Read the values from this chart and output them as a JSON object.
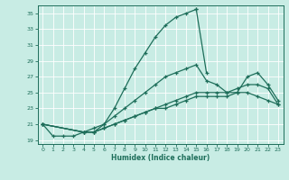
{
  "title": "",
  "xlabel": "Humidex (Indice chaleur)",
  "bg_color": "#c8ece4",
  "line_color": "#1e6e5a",
  "grid_color": "#b0d8d0",
  "xlim": [
    -0.5,
    23.5
  ],
  "ylim": [
    18.5,
    36.0
  ],
  "xticks": [
    0,
    1,
    2,
    3,
    4,
    5,
    6,
    7,
    8,
    9,
    10,
    11,
    12,
    13,
    14,
    15,
    16,
    17,
    18,
    19,
    20,
    21,
    22,
    23
  ],
  "yticks": [
    19,
    21,
    23,
    25,
    27,
    29,
    31,
    33,
    35
  ],
  "line1_x": [
    0,
    1,
    2,
    3,
    4,
    5,
    6,
    7,
    8,
    9,
    10,
    11,
    12,
    13,
    14,
    15,
    15,
    16
  ],
  "line1_y": [
    21,
    19.5,
    19.5,
    19.5,
    20,
    20,
    21,
    23,
    25.5,
    28,
    30,
    32,
    33.5,
    34.5,
    35,
    35.5,
    35.5,
    27.5
  ],
  "line2_x": [
    0,
    4,
    5,
    6,
    7,
    8,
    9,
    10,
    11,
    12,
    13,
    14,
    15,
    16,
    17,
    18,
    19,
    20,
    21,
    22,
    23
  ],
  "line2_y": [
    21,
    20,
    20.5,
    21,
    22,
    23,
    24,
    25,
    26,
    27,
    27.5,
    28,
    28.5,
    26.5,
    26,
    25,
    25,
    27,
    27.5,
    26,
    24
  ],
  "line3_x": [
    0,
    4,
    5,
    6,
    7,
    8,
    9,
    10,
    11,
    12,
    13,
    14,
    15,
    16,
    17,
    18,
    19,
    20,
    21,
    22,
    23
  ],
  "line3_y": [
    21,
    20,
    20,
    20.5,
    21,
    21.5,
    22,
    22.5,
    23,
    23.5,
    24,
    24.5,
    25,
    25,
    25,
    25,
    25.5,
    26,
    26,
    25.5,
    23.5
  ],
  "line4_x": [
    0,
    4,
    5,
    6,
    7,
    8,
    9,
    10,
    11,
    12,
    13,
    14,
    15,
    16,
    17,
    18,
    19,
    20,
    21,
    22,
    23
  ],
  "line4_y": [
    21,
    20,
    20,
    20.5,
    21,
    21.5,
    22,
    22.5,
    23,
    23,
    23.5,
    24,
    24.5,
    24.5,
    24.5,
    24.5,
    25,
    25,
    24.5,
    24,
    23.5
  ]
}
